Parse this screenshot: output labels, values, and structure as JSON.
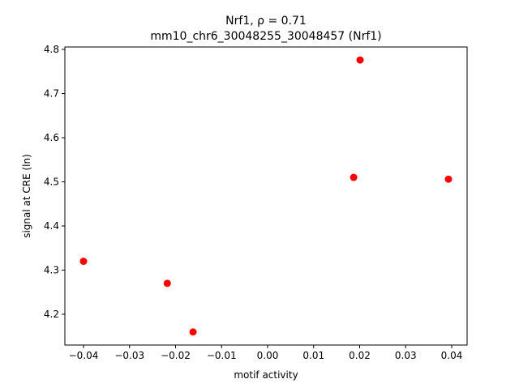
{
  "chart_data": {
    "type": "scatter",
    "title": "Nrf1, ρ = 0.71",
    "subtitle": "mm10_chr6_30048255_30048457 (Nrf1)",
    "x_label": "motif activity",
    "y_label": "signal at CRE (ln)",
    "color": "#ff0000",
    "x": [
      -0.04,
      -0.0218,
      -0.0162,
      0.0187,
      0.0201,
      0.0393
    ],
    "values": [
      4.32,
      4.27,
      4.16,
      4.51,
      4.776,
      4.506
    ],
    "xlim": [
      -0.04405,
      0.04335
    ],
    "ylim": [
      4.1303,
      4.8055
    ],
    "xticks": [
      {
        "value": -0.04,
        "label": "−0.04"
      },
      {
        "value": -0.03,
        "label": "−0.03"
      },
      {
        "value": -0.02,
        "label": "−0.02"
      },
      {
        "value": -0.01,
        "label": "−0.01"
      },
      {
        "value": 0,
        "label": "0.00"
      },
      0.01,
      0.02,
      0.03,
      0.04
    ],
    "yticks": [
      4.2,
      4.3,
      4.4,
      4.5,
      4.6,
      4.7,
      4.8
    ]
  }
}
